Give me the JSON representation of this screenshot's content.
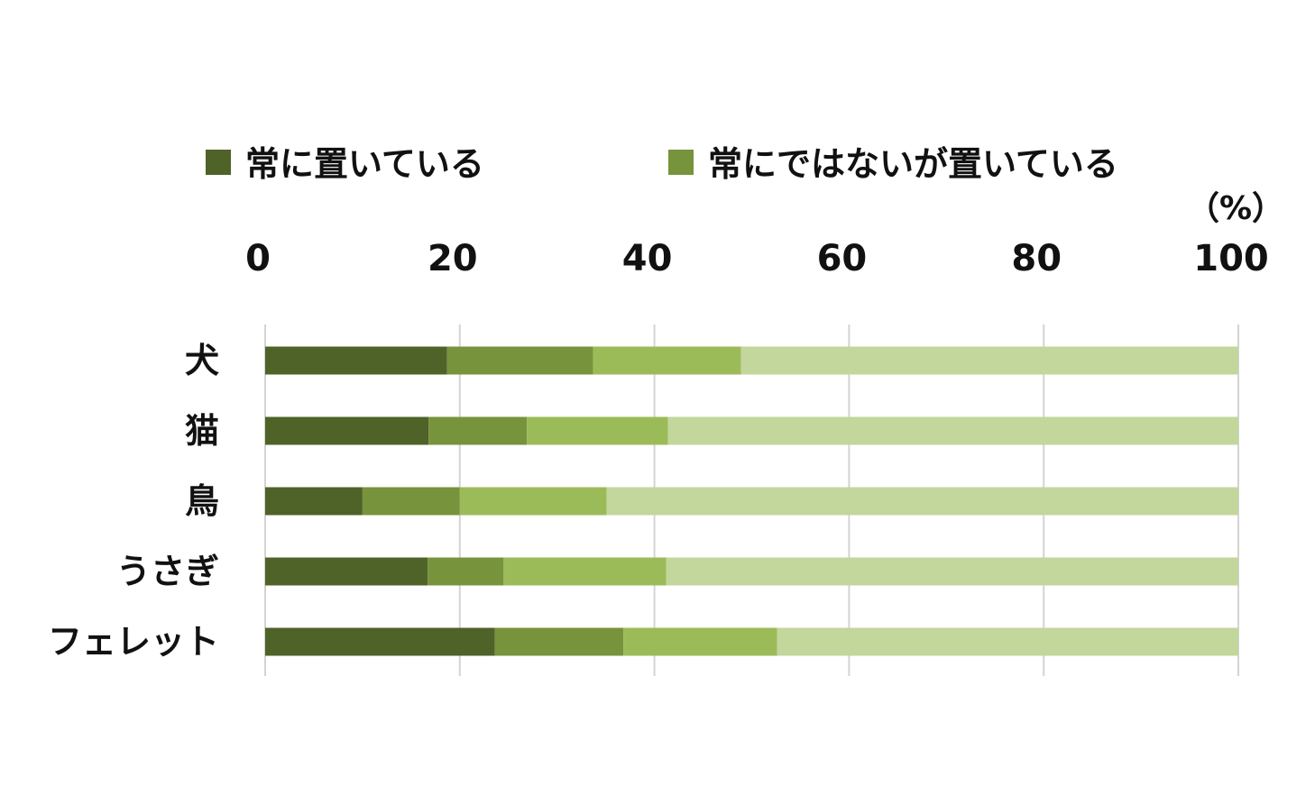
{
  "chart_data": {
    "type": "bar",
    "orientation": "horizontal",
    "stacked": true,
    "title": "",
    "xlabel": "",
    "ylabel": "",
    "unit_label": "（%）",
    "categories": [
      "犬",
      "猫",
      "鳥",
      "うさぎ",
      "フェレット"
    ],
    "xlim": [
      0,
      100
    ],
    "x_ticks": [
      0,
      20,
      40,
      60,
      80,
      100
    ],
    "grid": true,
    "legend_position": "top",
    "series": [
      {
        "name": "常に置いている",
        "color": "#4f6228",
        "values": [
          18.7,
          16.8,
          10.0,
          16.7,
          23.6
        ]
      },
      {
        "name": "常にではないが置いている",
        "color": "#77933c",
        "values": [
          15.0,
          10.1,
          10.0,
          7.8,
          13.2
        ]
      },
      {
        "name": "",
        "color": "#9bbb59",
        "values": [
          15.2,
          14.5,
          15.1,
          16.7,
          15.8
        ]
      },
      {
        "name": "",
        "color": "#c3d69b",
        "values": [
          51.1,
          58.6,
          64.9,
          58.8,
          47.4
        ]
      }
    ]
  }
}
